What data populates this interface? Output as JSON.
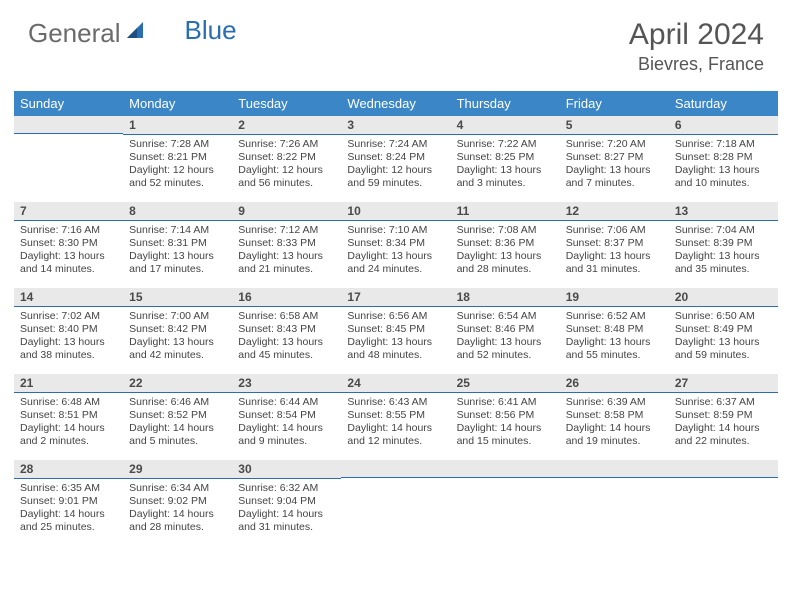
{
  "brand": {
    "part1": "General",
    "part2": "Blue"
  },
  "title": "April 2024",
  "location": "Bievres, France",
  "colors": {
    "header_bg": "#3b86c6",
    "rule": "#2a6db0",
    "daynum_bg": "#e9e9e9",
    "text": "#444444",
    "logo_gray": "#6b6b6b",
    "logo_blue": "#2a6db0"
  },
  "days_of_week": [
    "Sunday",
    "Monday",
    "Tuesday",
    "Wednesday",
    "Thursday",
    "Friday",
    "Saturday"
  ],
  "weeks": [
    [
      {
        "n": "",
        "sr": "",
        "ss": "",
        "dl": ""
      },
      {
        "n": "1",
        "sr": "Sunrise: 7:28 AM",
        "ss": "Sunset: 8:21 PM",
        "dl": "Daylight: 12 hours and 52 minutes."
      },
      {
        "n": "2",
        "sr": "Sunrise: 7:26 AM",
        "ss": "Sunset: 8:22 PM",
        "dl": "Daylight: 12 hours and 56 minutes."
      },
      {
        "n": "3",
        "sr": "Sunrise: 7:24 AM",
        "ss": "Sunset: 8:24 PM",
        "dl": "Daylight: 12 hours and 59 minutes."
      },
      {
        "n": "4",
        "sr": "Sunrise: 7:22 AM",
        "ss": "Sunset: 8:25 PM",
        "dl": "Daylight: 13 hours and 3 minutes."
      },
      {
        "n": "5",
        "sr": "Sunrise: 7:20 AM",
        "ss": "Sunset: 8:27 PM",
        "dl": "Daylight: 13 hours and 7 minutes."
      },
      {
        "n": "6",
        "sr": "Sunrise: 7:18 AM",
        "ss": "Sunset: 8:28 PM",
        "dl": "Daylight: 13 hours and 10 minutes."
      }
    ],
    [
      {
        "n": "7",
        "sr": "Sunrise: 7:16 AM",
        "ss": "Sunset: 8:30 PM",
        "dl": "Daylight: 13 hours and 14 minutes."
      },
      {
        "n": "8",
        "sr": "Sunrise: 7:14 AM",
        "ss": "Sunset: 8:31 PM",
        "dl": "Daylight: 13 hours and 17 minutes."
      },
      {
        "n": "9",
        "sr": "Sunrise: 7:12 AM",
        "ss": "Sunset: 8:33 PM",
        "dl": "Daylight: 13 hours and 21 minutes."
      },
      {
        "n": "10",
        "sr": "Sunrise: 7:10 AM",
        "ss": "Sunset: 8:34 PM",
        "dl": "Daylight: 13 hours and 24 minutes."
      },
      {
        "n": "11",
        "sr": "Sunrise: 7:08 AM",
        "ss": "Sunset: 8:36 PM",
        "dl": "Daylight: 13 hours and 28 minutes."
      },
      {
        "n": "12",
        "sr": "Sunrise: 7:06 AM",
        "ss": "Sunset: 8:37 PM",
        "dl": "Daylight: 13 hours and 31 minutes."
      },
      {
        "n": "13",
        "sr": "Sunrise: 7:04 AM",
        "ss": "Sunset: 8:39 PM",
        "dl": "Daylight: 13 hours and 35 minutes."
      }
    ],
    [
      {
        "n": "14",
        "sr": "Sunrise: 7:02 AM",
        "ss": "Sunset: 8:40 PM",
        "dl": "Daylight: 13 hours and 38 minutes."
      },
      {
        "n": "15",
        "sr": "Sunrise: 7:00 AM",
        "ss": "Sunset: 8:42 PM",
        "dl": "Daylight: 13 hours and 42 minutes."
      },
      {
        "n": "16",
        "sr": "Sunrise: 6:58 AM",
        "ss": "Sunset: 8:43 PM",
        "dl": "Daylight: 13 hours and 45 minutes."
      },
      {
        "n": "17",
        "sr": "Sunrise: 6:56 AM",
        "ss": "Sunset: 8:45 PM",
        "dl": "Daylight: 13 hours and 48 minutes."
      },
      {
        "n": "18",
        "sr": "Sunrise: 6:54 AM",
        "ss": "Sunset: 8:46 PM",
        "dl": "Daylight: 13 hours and 52 minutes."
      },
      {
        "n": "19",
        "sr": "Sunrise: 6:52 AM",
        "ss": "Sunset: 8:48 PM",
        "dl": "Daylight: 13 hours and 55 minutes."
      },
      {
        "n": "20",
        "sr": "Sunrise: 6:50 AM",
        "ss": "Sunset: 8:49 PM",
        "dl": "Daylight: 13 hours and 59 minutes."
      }
    ],
    [
      {
        "n": "21",
        "sr": "Sunrise: 6:48 AM",
        "ss": "Sunset: 8:51 PM",
        "dl": "Daylight: 14 hours and 2 minutes."
      },
      {
        "n": "22",
        "sr": "Sunrise: 6:46 AM",
        "ss": "Sunset: 8:52 PM",
        "dl": "Daylight: 14 hours and 5 minutes."
      },
      {
        "n": "23",
        "sr": "Sunrise: 6:44 AM",
        "ss": "Sunset: 8:54 PM",
        "dl": "Daylight: 14 hours and 9 minutes."
      },
      {
        "n": "24",
        "sr": "Sunrise: 6:43 AM",
        "ss": "Sunset: 8:55 PM",
        "dl": "Daylight: 14 hours and 12 minutes."
      },
      {
        "n": "25",
        "sr": "Sunrise: 6:41 AM",
        "ss": "Sunset: 8:56 PM",
        "dl": "Daylight: 14 hours and 15 minutes."
      },
      {
        "n": "26",
        "sr": "Sunrise: 6:39 AM",
        "ss": "Sunset: 8:58 PM",
        "dl": "Daylight: 14 hours and 19 minutes."
      },
      {
        "n": "27",
        "sr": "Sunrise: 6:37 AM",
        "ss": "Sunset: 8:59 PM",
        "dl": "Daylight: 14 hours and 22 minutes."
      }
    ],
    [
      {
        "n": "28",
        "sr": "Sunrise: 6:35 AM",
        "ss": "Sunset: 9:01 PM",
        "dl": "Daylight: 14 hours and 25 minutes."
      },
      {
        "n": "29",
        "sr": "Sunrise: 6:34 AM",
        "ss": "Sunset: 9:02 PM",
        "dl": "Daylight: 14 hours and 28 minutes."
      },
      {
        "n": "30",
        "sr": "Sunrise: 6:32 AM",
        "ss": "Sunset: 9:04 PM",
        "dl": "Daylight: 14 hours and 31 minutes."
      },
      {
        "n": "",
        "sr": "",
        "ss": "",
        "dl": ""
      },
      {
        "n": "",
        "sr": "",
        "ss": "",
        "dl": ""
      },
      {
        "n": "",
        "sr": "",
        "ss": "",
        "dl": ""
      },
      {
        "n": "",
        "sr": "",
        "ss": "",
        "dl": ""
      }
    ]
  ]
}
